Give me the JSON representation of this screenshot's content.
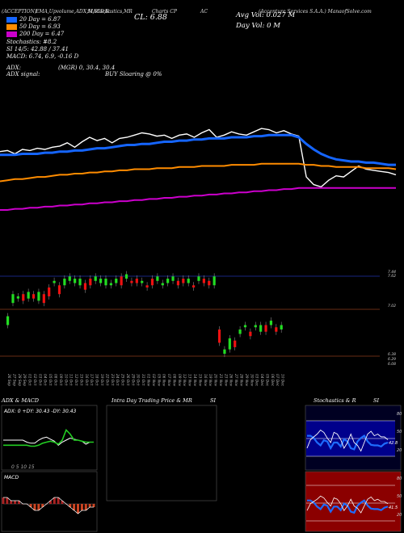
{
  "header": {
    "symbol": "(ACCEPTION)",
    "indicators_label": "EMA,Upvolume,ADX,MACD,R",
    "stoch_label": "SI,Stochastics,MR",
    "chart_of": "Charts CP",
    "ac": "AC",
    "company": "(Accenture Services S.A.A.) ManaofSolve.com",
    "cl_label": "CL: 6.88",
    "avg_vol": "Avg Vol: 0.027 M",
    "day_vol": "Day Vol: 0   M"
  },
  "legend": [
    {
      "label": "20  Day = 6.87",
      "color": "#1565ff"
    },
    {
      "label": "50  Day = 6.93",
      "color": "#ff8c00"
    },
    {
      "label": "200  Day = 6.47",
      "color": "#cc00cc"
    }
  ],
  "info_lines": [
    "Stochastics: #8.2",
    "SI 14/5: 42.88  / 37.41",
    "MACD: 6.74,  6.9,  -0.16  D"
  ],
  "adx_lines": {
    "adx": "ADX:",
    "adx_values": "(MGR) 0,  30.4,  30.4",
    "adx_signal": "ADX  signal:",
    "buy": "BUY Sloaring @ 0%"
  },
  "price_levels": [
    "7.44",
    "7.62",
    "7.02",
    "6.38",
    "6.29",
    "6.08"
  ],
  "x_ticks": [
    "26 Sep",
    "27 Sep",
    "28 Sep",
    "29 Sep",
    "01 Oct",
    "02 Oct",
    "03 Oct",
    "04 Oct",
    "05 Oct",
    "08 Oct",
    "09 Oct",
    "10 Oct",
    "11 Oct",
    "12 Oct",
    "15 Oct",
    "16 Oct",
    "17 Oct",
    "18 Oct",
    "19 Oct",
    "22 Oct",
    "23 Oct",
    "24 Oct",
    "25 Oct",
    "26 Oct",
    "29 Oct",
    "30 Oct",
    "31 Oct",
    "01 Nov",
    "02 Nov",
    "05 Nov",
    "06 Nov",
    "07 Nov",
    "08 Nov",
    "09 Nov",
    "12 Nov",
    "13 Nov",
    "14 Nov",
    "15 Nov",
    "16 Nov",
    "19 Nov",
    "20 Nov",
    "21 Nov",
    "23 Nov",
    "26 Nov",
    "27 Nov",
    "28 Nov",
    "29 Nov",
    "30 Nov",
    "03 Dec",
    "04 Dec",
    "05 Dec",
    "06 Dec",
    "07 Dec",
    "10 Dec"
  ],
  "panels": {
    "adx_macd": {
      "title": "ADX  & MACD",
      "values": "ADX: 0   +DY: 30.43  -DY: 30.43",
      "bottom_label": "MACD"
    },
    "intraday": {
      "title": "Intra  Day Trading Price  & MR",
      "si": "SI"
    },
    "stoch": {
      "title": "Stochastics & R",
      "si": "SI",
      "top_ticks": [
        "80",
        "50",
        "20"
      ],
      "bottom_ticks": [
        "80",
        "50",
        "20"
      ],
      "top_value": "42.8",
      "bottom_value": "41.5"
    }
  },
  "chart_data": [
    {
      "type": "line",
      "title": "Price with moving averages",
      "series": [
        {
          "name": "Close",
          "color": "#ffffff",
          "values": [
            7.25,
            7.26,
            7.23,
            7.27,
            7.26,
            7.28,
            7.27,
            7.29,
            7.3,
            7.33,
            7.29,
            7.34,
            7.38,
            7.35,
            7.37,
            7.33,
            7.37,
            7.38,
            7.4,
            7.42,
            7.41,
            7.39,
            7.4,
            7.37,
            7.4,
            7.41,
            7.38,
            7.42,
            7.45,
            7.38,
            7.4,
            7.43,
            7.41,
            7.4,
            7.43,
            7.46,
            7.45,
            7.42,
            7.44,
            7.41,
            7.39,
            7.02,
            6.95,
            6.93,
            6.99,
            7.03,
            7.02,
            7.07,
            7.12,
            7.09,
            7.08,
            7.07,
            7.06,
            7.04
          ]
        },
        {
          "name": "20 Day",
          "color": "#1565ff",
          "values": [
            7.22,
            7.22,
            7.22,
            7.23,
            7.23,
            7.23,
            7.24,
            7.24,
            7.25,
            7.25,
            7.26,
            7.26,
            7.27,
            7.28,
            7.28,
            7.29,
            7.3,
            7.31,
            7.31,
            7.32,
            7.32,
            7.33,
            7.34,
            7.34,
            7.35,
            7.35,
            7.36,
            7.36,
            7.37,
            7.37,
            7.37,
            7.38,
            7.38,
            7.38,
            7.39,
            7.39,
            7.4,
            7.4,
            7.4,
            7.4,
            7.38,
            7.32,
            7.27,
            7.23,
            7.2,
            7.18,
            7.17,
            7.16,
            7.16,
            7.15,
            7.15,
            7.14,
            7.13,
            7.13
          ]
        },
        {
          "name": "50 Day",
          "color": "#ff8c00",
          "values": [
            6.98,
            6.99,
            7.0,
            7.0,
            7.01,
            7.02,
            7.02,
            7.03,
            7.04,
            7.04,
            7.05,
            7.05,
            7.06,
            7.06,
            7.07,
            7.07,
            7.08,
            7.08,
            7.09,
            7.09,
            7.09,
            7.1,
            7.1,
            7.1,
            7.11,
            7.11,
            7.11,
            7.12,
            7.12,
            7.12,
            7.12,
            7.13,
            7.13,
            7.13,
            7.13,
            7.14,
            7.14,
            7.14,
            7.14,
            7.14,
            7.14,
            7.13,
            7.13,
            7.12,
            7.12,
            7.11,
            7.11,
            7.11,
            7.11,
            7.1,
            7.1,
            7.1,
            7.1,
            7.09
          ]
        },
        {
          "name": "200 Day",
          "color": "#cc00cc",
          "values": [
            6.72,
            6.72,
            6.73,
            6.73,
            6.74,
            6.74,
            6.75,
            6.75,
            6.76,
            6.76,
            6.77,
            6.77,
            6.78,
            6.78,
            6.79,
            6.79,
            6.8,
            6.8,
            6.81,
            6.81,
            6.82,
            6.82,
            6.83,
            6.83,
            6.84,
            6.84,
            6.85,
            6.85,
            6.86,
            6.86,
            6.87,
            6.87,
            6.88,
            6.88,
            6.89,
            6.89,
            6.9,
            6.9,
            6.91,
            6.91,
            6.92,
            6.92,
            6.92,
            6.92,
            6.92,
            6.92,
            6.92,
            6.92,
            6.92,
            6.92,
            6.92,
            6.92,
            6.92,
            6.92
          ]
        }
      ],
      "ylim": [
        6.5,
        7.6
      ]
    },
    {
      "type": "bar",
      "title": "Candles",
      "open": [
        7.02,
        7.22,
        7.26,
        7.3,
        7.26,
        7.3,
        7.24,
        7.3,
        7.36,
        7.4,
        7.38,
        7.38,
        7.42,
        7.4,
        7.38,
        7.4,
        7.44,
        7.42,
        7.4,
        7.38,
        7.38,
        7.4,
        7.46,
        7.44,
        7.42,
        7.44,
        7.4,
        7.38,
        7.44,
        7.42,
        7.38,
        7.4,
        7.42,
        7.42,
        7.44,
        7.4,
        7.38,
        7.42,
        7.44,
        7.42,
        7.38,
        6.98,
        6.76,
        6.8,
        6.88,
        6.94,
        7.0,
        6.96,
        7.0,
        6.96,
        7.02,
        7.02,
        7.0,
        6.98
      ],
      "close": [
        7.1,
        7.3,
        7.28,
        7.24,
        7.32,
        7.26,
        7.32,
        7.22,
        7.28,
        7.42,
        7.3,
        7.44,
        7.46,
        7.44,
        7.44,
        7.34,
        7.38,
        7.46,
        7.44,
        7.44,
        7.4,
        7.44,
        7.38,
        7.48,
        7.4,
        7.4,
        7.42,
        7.36,
        7.38,
        7.46,
        7.4,
        7.44,
        7.46,
        7.38,
        7.4,
        7.44,
        7.36,
        7.46,
        7.4,
        7.38,
        7.46,
        6.86,
        6.8,
        6.9,
        6.82,
        6.98,
        7.02,
        6.92,
        7.02,
        7.02,
        6.96,
        7.06,
        6.96,
        7.02
      ]
    },
    {
      "type": "line",
      "title": "ADX & MACD",
      "series": [
        {
          "name": "ADX",
          "values": [
            30,
            30,
            30,
            30,
            30,
            30,
            28,
            27,
            27,
            30,
            32,
            33,
            31,
            29,
            25,
            28,
            30,
            32,
            31,
            30,
            29,
            26,
            28,
            28
          ]
        },
        {
          "name": "+DY",
          "values": [
            25,
            25,
            25,
            25,
            25,
            25,
            25,
            24,
            24,
            25,
            27,
            28,
            29,
            28,
            26,
            30,
            40,
            36,
            30,
            30,
            29,
            28,
            28,
            28
          ]
        },
        {
          "name": "MACD",
          "values": [
            0.02,
            0.02,
            0.01,
            0.01,
            0.01,
            0.0,
            0.0,
            -0.01,
            -0.02,
            -0.02,
            -0.01,
            0.0,
            0.01,
            0.02,
            0.02,
            0.01,
            0.0,
            -0.01,
            -0.02,
            -0.03,
            -0.02,
            -0.02,
            -0.01,
            -0.01
          ]
        }
      ]
    },
    {
      "type": "line",
      "title": "Stochastics & R",
      "series": [
        {
          "name": "Stochastics",
          "values": [
            30,
            45,
            50,
            55,
            62,
            58,
            48,
            40,
            58,
            55,
            45,
            30,
            40,
            55,
            40,
            35,
            25,
            40,
            55,
            60,
            52,
            55,
            50,
            50,
            45
          ]
        },
        {
          "name": "R",
          "values": [
            52,
            52,
            48,
            40,
            35,
            44,
            42,
            30,
            40,
            40,
            33,
            46,
            42,
            30,
            28,
            42,
            48,
            52,
            42,
            36,
            35,
            35,
            33,
            38,
            40
          ]
        }
      ],
      "ylim": [
        0,
        100
      ]
    }
  ]
}
